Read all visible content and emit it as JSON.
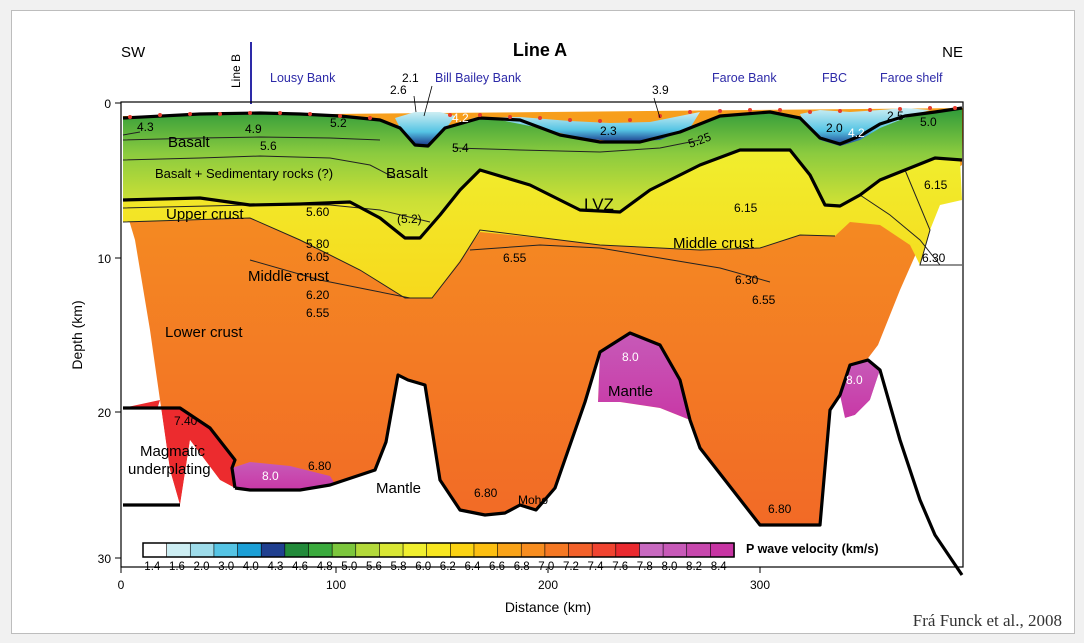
{
  "title": "Line A",
  "directions": {
    "left": "SW",
    "right": "NE"
  },
  "line_b_label": "Line B",
  "xlabel": "Distance (km)",
  "ylabel": "Depth (km)",
  "x_ticks": [
    "0",
    "100",
    "200",
    "300"
  ],
  "y_ticks": [
    "0",
    "10",
    "20",
    "30"
  ],
  "place_labels": [
    "Lousy Bank",
    "Bill Bailey Bank",
    "Faroe Bank",
    "FBC",
    "Faroe shelf"
  ],
  "region_labels": {
    "basalt1": "Basalt",
    "basalt_sed": "Basalt + Sedimentary rocks (?)",
    "basalt2": "Basalt",
    "upper_crust": "Upper crust",
    "lvz": "LVZ",
    "middle_crust_left": "Middle crust",
    "middle_crust_right": "Middle crust",
    "lower_crust": "Lower crust",
    "magmatic": "Magmatic",
    "underplating": "underplating",
    "mantle1": "Mantle",
    "mantle2": "Mantle",
    "moho": "Moho"
  },
  "velocity_labels": {
    "v_4_3": "4.3",
    "v_4_9": "4.9",
    "v_5_2": "5.2",
    "v_5_6": "5.6",
    "v_2_6": "2.6",
    "v_2_1": "2.1",
    "v_4_2a": "4.2",
    "v_5_4": "5.4",
    "v_3_9": "3.9",
    "v_2_3": "2.3",
    "v_5_25": "5.25",
    "v_2_0": "2.0",
    "v_4_2b": "4.2",
    "v_2_5": "2.5",
    "v_5_0": "5.0",
    "v_6_15a": "6.15",
    "v_5_60": "5.60",
    "v_5_2p": "(5.2)",
    "v_6_15b": "6.15",
    "v_5_80": "5.80",
    "v_6_05": "6.05",
    "v_6_55a": "6.55",
    "v_6_30a": "6.30",
    "v_6_30b": "6.30",
    "v_6_55b": "6.55",
    "v_6_20": "6.20",
    "v_6_55c": "6.55",
    "v_8_0a": "8.0",
    "v_8_0b": "8.0",
    "v_7_40": "7.40",
    "v_8_0c": "8.0",
    "v_6_80a": "6.80",
    "v_6_80b": "6.80",
    "v_6_80c": "6.80"
  },
  "colorbar": {
    "title": "P wave velocity (km/s)",
    "labels": [
      "1.4",
      "1.6",
      "2.0",
      "3.0",
      "4.0",
      "4.3",
      "4.6",
      "4.8",
      "5.0",
      "5.6",
      "5.8",
      "6.0",
      "6.2",
      "6.4",
      "6.6",
      "6.8",
      "7.0",
      "7.2",
      "7.4",
      "7.6",
      "7.8",
      "8.0",
      "8.2",
      "8.4"
    ],
    "colors": [
      "#ffffff",
      "#cdeef3",
      "#9edcea",
      "#55c4e4",
      "#1b9fd6",
      "#1f3f8f",
      "#228a3a",
      "#3aaa3c",
      "#7cc63c",
      "#b3d93a",
      "#d9e634",
      "#f0ef2e",
      "#f8e61f",
      "#fbd313",
      "#fcbf11",
      "#f9a318",
      "#f78d1f",
      "#f57823",
      "#f3612a",
      "#f04430",
      "#ea2a2f",
      "#c869c0",
      "#c759b8",
      "#c747ad",
      "#c734a3"
    ]
  },
  "credit": "Frá Funck et al., 2008"
}
